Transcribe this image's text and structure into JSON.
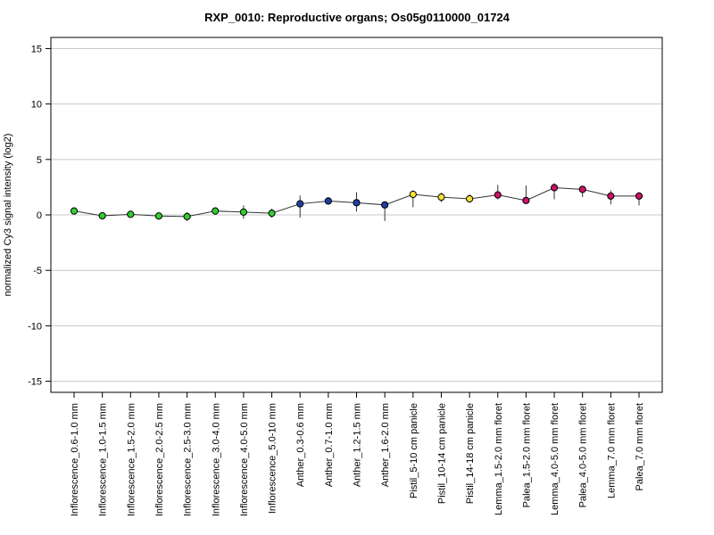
{
  "chart_data": {
    "type": "scatter",
    "title": "RXP_0010: Reproductive organs; Os05g0110000_01724",
    "xlabel": "",
    "ylabel": "normalized Cy3 signal intensity (log2)",
    "ylim": [
      -16,
      16
    ],
    "yticks": [
      -15,
      -10,
      -5,
      0,
      5,
      10,
      15
    ],
    "grid": "horizontal",
    "connected": true,
    "categories": [
      "Inflorescence_0.6-1.0 mm",
      "Inflorescence_1.0-1.5 mm",
      "Inflorescence_1.5-2.0 mm",
      "Inflorescence_2.0-2.5 mm",
      "Inflorescence_2.5-3.0 mm",
      "Inflorescence_3.0-4.0 mm",
      "Inflorescence_4.0-5.0 mm",
      "Inflorescence_5.0-10 mm",
      "Anther_0.3-0.6 mm",
      "Anther_0.7-1.0 mm",
      "Anther_1.2-1.5 mm",
      "Anther_1.6-2.0 mm",
      "Pistil_5-10 cm panicle",
      "Pistil_10-14 cm panicle",
      "Pistil_14-18 cm panicle",
      "Lemma_1.5-2.0 mm floret",
      "Palea_1.5-2.0 mm floret",
      "Lemma_4.0-5.0 mm floret",
      "Palea_4.0-5.0 mm floret",
      "Lemma_7.0 mm floret",
      "Palea_7.0 mm floret"
    ],
    "values": [
      0.35,
      -0.08,
      0.05,
      -0.1,
      -0.15,
      0.35,
      0.25,
      0.15,
      1.0,
      1.25,
      1.1,
      0.9,
      1.85,
      1.6,
      1.45,
      1.8,
      1.3,
      2.45,
      2.3,
      1.7,
      1.7
    ],
    "error_low": [
      0.2,
      -0.35,
      -0.15,
      -0.3,
      -0.55,
      0.2,
      -0.35,
      -0.25,
      -0.25,
      0.95,
      0.3,
      -0.55,
      0.7,
      1.15,
      1.1,
      1.4,
      1.1,
      1.4,
      1.6,
      0.95,
      0.85
    ],
    "error_high": [
      0.5,
      0.2,
      0.25,
      0.1,
      0.25,
      0.5,
      0.85,
      0.55,
      1.75,
      1.6,
      2.05,
      1.2,
      2.2,
      2.0,
      1.85,
      2.7,
      2.65,
      2.85,
      2.5,
      2.2,
      2.05
    ],
    "point_colors": [
      "#33cc33",
      "#33cc33",
      "#33cc33",
      "#33cc33",
      "#33cc33",
      "#33cc33",
      "#33cc33",
      "#33cc33",
      "#1f3fa6",
      "#1f3fa6",
      "#1f3fa6",
      "#1f3fa6",
      "#f2e033",
      "#f2e033",
      "#f2e033",
      "#cc1166",
      "#cc1166",
      "#cc1166",
      "#cc1166",
      "#cc1166",
      "#cc1166"
    ]
  }
}
